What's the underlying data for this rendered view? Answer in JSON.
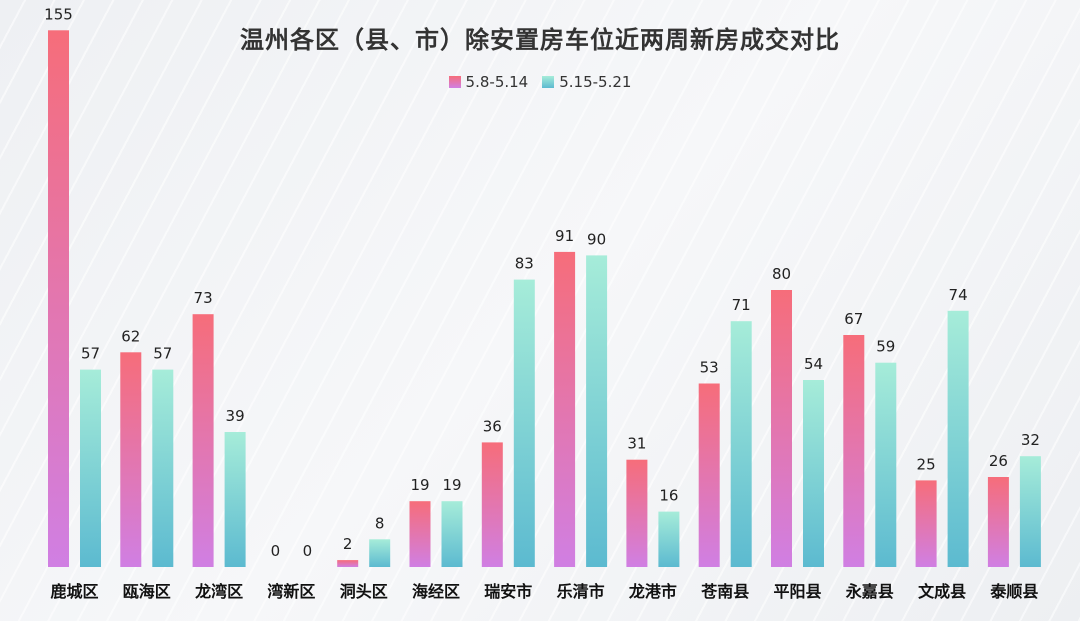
{
  "chart_data": {
    "type": "bar",
    "title": "温州各区（县、市）除安置房车位近两周新房成交对比",
    "categories": [
      "鹿城区",
      "瓯海区",
      "龙湾区",
      "湾新区",
      "洞头区",
      "海经区",
      "瑞安市",
      "乐清市",
      "龙港市",
      "苍南县",
      "平阳县",
      "永嘉县",
      "文成县",
      "泰顺县"
    ],
    "series": [
      {
        "name": "5.8-5.14",
        "values": [
          155,
          62,
          73,
          0,
          2,
          19,
          36,
          91,
          31,
          53,
          80,
          67,
          25,
          26
        ],
        "color_top": "#f66d7a",
        "color_bottom": "#d07fe3"
      },
      {
        "name": "5.15-5.21",
        "values": [
          57,
          57,
          39,
          0,
          8,
          19,
          83,
          90,
          16,
          71,
          54,
          59,
          74,
          32
        ],
        "color_top": "#a6ecd9",
        "color_bottom": "#5cbad0"
      }
    ],
    "ylim": [
      0,
      160
    ],
    "grid": false,
    "legend_position": "top-center",
    "data_labels": true
  }
}
